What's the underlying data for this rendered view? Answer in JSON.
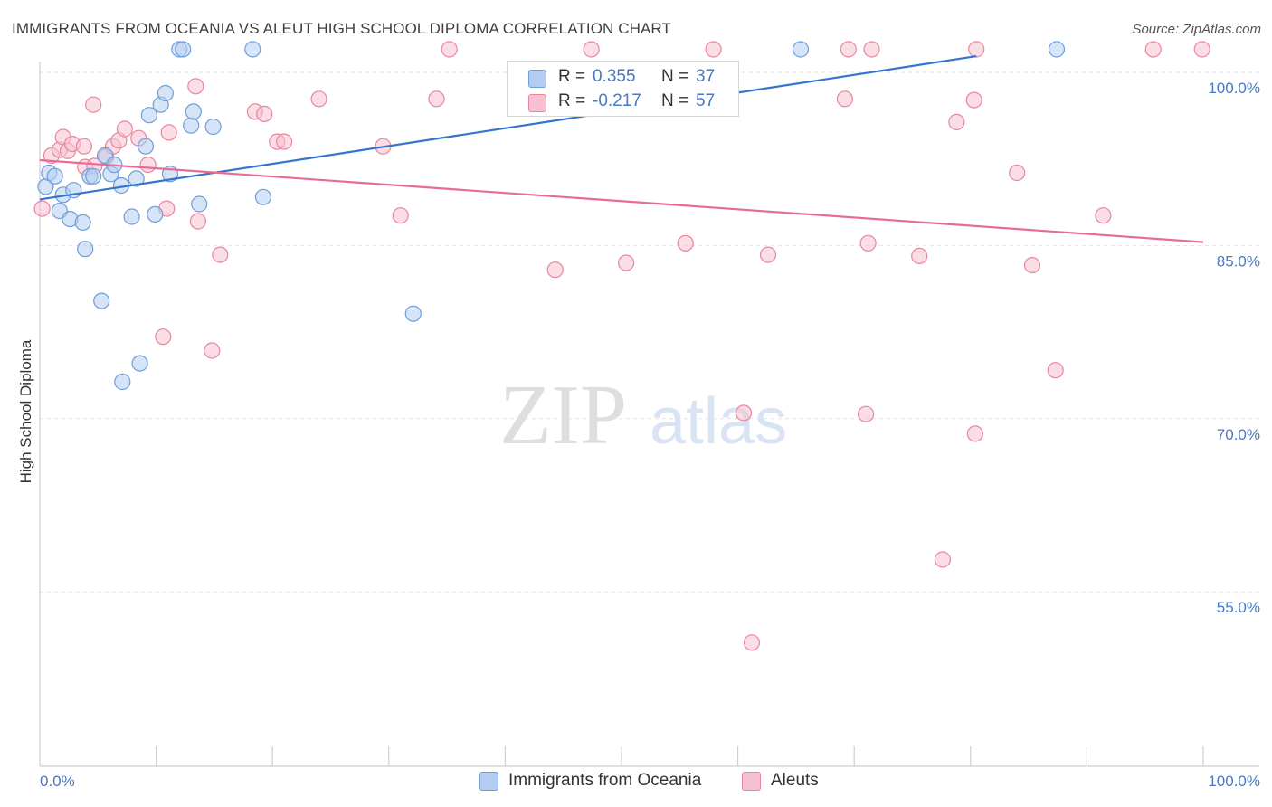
{
  "title": "IMMIGRANTS FROM OCEANIA VS ALEUT HIGH SCHOOL DIPLOMA CORRELATION CHART",
  "source": "Source: ZipAtlas.com",
  "watermark": {
    "zip": "ZIP",
    "atlas": "atlas"
  },
  "legend": {
    "r_label": "R =",
    "n_label": "N =",
    "series": [
      {
        "r": "0.355",
        "n": "37"
      },
      {
        "r": "-0.217",
        "n": "57"
      }
    ]
  },
  "colors": {
    "blue_fill": "#b3cdf0",
    "blue_stroke": "#6f9ed8",
    "blue_line": "#3474cf",
    "pink_fill": "#f8c1d1",
    "pink_stroke": "#e8869f",
    "pink_line": "#e66b96",
    "axis_text": "#4a78c4",
    "grid": "#e2e2e2"
  },
  "chart_data": {
    "type": "scatter",
    "title": "IMMIGRANTS FROM OCEANIA VS ALEUT HIGH SCHOOL DIPLOMA CORRELATION CHART",
    "xlabel": "",
    "ylabel": "High School Diploma",
    "xlim": [
      0,
      100
    ],
    "ylim": [
      40,
      100
    ],
    "x_tick_labels": [
      "0.0%",
      "100.0%"
    ],
    "y_ticks": [
      {
        "value": 100,
        "label": "100.0%"
      },
      {
        "value": 85,
        "label": "85.0%"
      },
      {
        "value": 70,
        "label": "70.0%"
      },
      {
        "value": 55,
        "label": "55.0%"
      }
    ],
    "grid": true,
    "legend_position": "bottom",
    "series": [
      {
        "name": "Immigrants from Oceania",
        "trend": {
          "x": [
            0,
            80.5
          ],
          "y": [
            89.0,
            101.4
          ]
        },
        "points": [
          [
            0.5,
            90.1
          ],
          [
            0.8,
            91.3
          ],
          [
            1.3,
            91.0
          ],
          [
            1.7,
            88.0
          ],
          [
            2.0,
            89.4
          ],
          [
            2.6,
            87.3
          ],
          [
            2.9,
            89.8
          ],
          [
            3.7,
            87.0
          ],
          [
            3.9,
            84.7
          ],
          [
            4.3,
            91.0
          ],
          [
            4.6,
            91.0
          ],
          [
            5.3,
            80.2
          ],
          [
            5.6,
            92.8
          ],
          [
            6.1,
            91.2
          ],
          [
            6.4,
            92.0
          ],
          [
            7.1,
            73.2
          ],
          [
            7.0,
            90.2
          ],
          [
            7.9,
            87.5
          ],
          [
            8.3,
            90.8
          ],
          [
            8.6,
            74.8
          ],
          [
            9.1,
            93.6
          ],
          [
            9.4,
            96.3
          ],
          [
            9.9,
            87.7
          ],
          [
            10.4,
            97.2
          ],
          [
            10.8,
            98.2
          ],
          [
            11.2,
            91.2
          ],
          [
            12.0,
            102.0
          ],
          [
            12.3,
            102.0
          ],
          [
            13.0,
            95.4
          ],
          [
            13.2,
            96.6
          ],
          [
            13.7,
            88.6
          ],
          [
            14.9,
            95.3
          ],
          [
            18.3,
            102.0
          ],
          [
            19.2,
            89.2
          ],
          [
            32.1,
            79.1
          ],
          [
            65.4,
            102.0
          ],
          [
            87.4,
            102.0
          ]
        ]
      },
      {
        "name": "Aleuts",
        "trend": {
          "x": [
            0,
            100
          ],
          "y": [
            92.4,
            85.3
          ]
        },
        "points": [
          [
            0.2,
            88.2
          ],
          [
            1.0,
            92.8
          ],
          [
            1.7,
            93.3
          ],
          [
            2.0,
            94.4
          ],
          [
            2.4,
            93.2
          ],
          [
            2.8,
            93.8
          ],
          [
            3.8,
            93.6
          ],
          [
            3.9,
            91.8
          ],
          [
            4.6,
            97.2
          ],
          [
            4.7,
            91.9
          ],
          [
            5.7,
            92.7
          ],
          [
            6.3,
            93.6
          ],
          [
            6.8,
            94.1
          ],
          [
            7.3,
            95.1
          ],
          [
            8.5,
            94.3
          ],
          [
            9.3,
            92.0
          ],
          [
            10.6,
            77.1
          ],
          [
            10.9,
            88.2
          ],
          [
            11.1,
            94.8
          ],
          [
            13.4,
            98.8
          ],
          [
            13.6,
            87.1
          ],
          [
            14.8,
            75.9
          ],
          [
            15.5,
            84.2
          ],
          [
            18.5,
            96.6
          ],
          [
            19.3,
            96.4
          ],
          [
            20.4,
            94.0
          ],
          [
            21.0,
            94.0
          ],
          [
            24.0,
            97.7
          ],
          [
            29.5,
            93.6
          ],
          [
            31.0,
            87.6
          ],
          [
            34.1,
            97.7
          ],
          [
            35.2,
            102.0
          ],
          [
            44.3,
            82.9
          ],
          [
            47.4,
            102.0
          ],
          [
            50.4,
            83.5
          ],
          [
            55.5,
            85.2
          ],
          [
            57.9,
            102.0
          ],
          [
            60.5,
            70.5
          ],
          [
            61.2,
            50.6
          ],
          [
            62.6,
            84.2
          ],
          [
            69.2,
            97.7
          ],
          [
            69.5,
            102.0
          ],
          [
            71.0,
            70.4
          ],
          [
            71.2,
            85.2
          ],
          [
            71.5,
            102.0
          ],
          [
            75.6,
            84.1
          ],
          [
            77.6,
            57.8
          ],
          [
            78.8,
            95.7
          ],
          [
            80.3,
            97.6
          ],
          [
            80.4,
            68.7
          ],
          [
            80.5,
            102.0
          ],
          [
            84.0,
            91.3
          ],
          [
            85.3,
            83.3
          ],
          [
            87.3,
            74.2
          ],
          [
            91.4,
            87.6
          ],
          [
            95.7,
            102.0
          ],
          [
            99.9,
            102.0
          ]
        ]
      }
    ]
  }
}
